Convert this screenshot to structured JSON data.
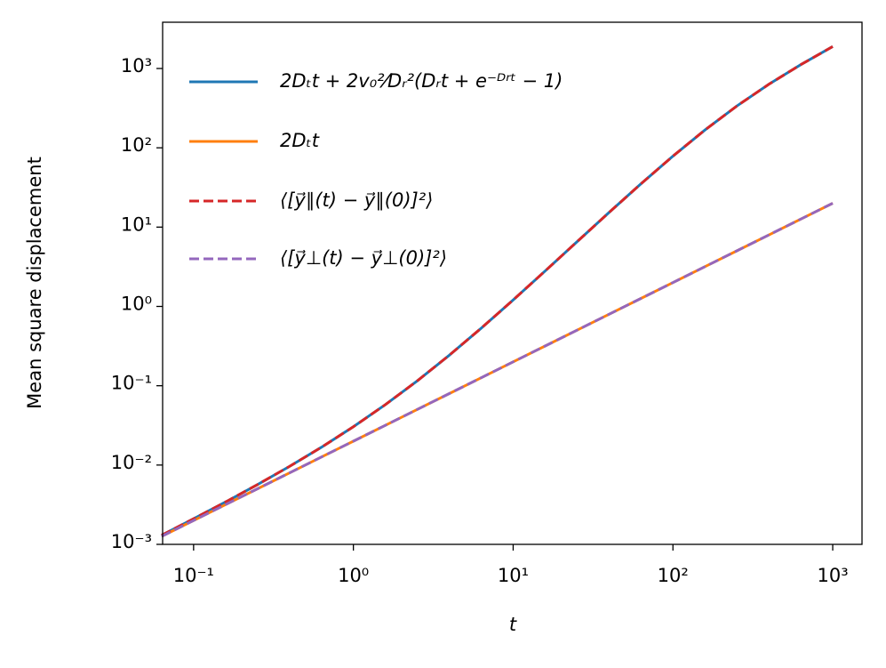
{
  "chart_data": {
    "type": "line",
    "log_x": true,
    "log_y": true,
    "grid": false,
    "x_label": "t",
    "y_label": "Mean square displacement",
    "x": [
      0.0631,
      0.1,
      0.1585,
      0.2512,
      0.3981,
      0.631,
      1,
      1.585,
      2.512,
      3.981,
      6.31,
      10,
      15.85,
      25.12,
      39.81,
      63.1,
      100,
      158.5,
      251.2,
      398.1,
      631,
      1000
    ],
    "series": [
      {
        "name": "2Dₜt + 2v₀²⁄Dᵣ²(Dᵣt + e⁻ᴰʳᵗ − 1)",
        "color": "#1f77b4",
        "dashed": false,
        "values": [
          0.001303,
          0.002104,
          0.00342,
          0.005675,
          0.009607,
          0.01676,
          0.0304,
          0.0577,
          0.1153,
          0.2422,
          0.5317,
          1.206,
          2.796,
          6.549,
          15.29,
          35.18,
          78.5,
          167.5,
          336.4,
          631.9,
          1117.4,
          1892
        ]
      },
      {
        "name": "2Dₜt",
        "color": "#ff7f0e",
        "dashed": false,
        "values": [
          0.001262,
          0.002,
          0.00317,
          0.005024,
          0.00796,
          0.01262,
          0.02,
          0.0317,
          0.05024,
          0.07962,
          0.1262,
          0.2,
          0.317,
          0.5024,
          0.7962,
          1.262,
          2,
          3.17,
          5.024,
          7.962,
          12.62,
          20
        ]
      },
      {
        "name": "⟨[y⃗∥(t) − y⃗∥(0)]²⟩",
        "color": "#d62728",
        "dashed": true,
        "values": [
          0.001303,
          0.002104,
          0.00342,
          0.005675,
          0.009607,
          0.01676,
          0.0304,
          0.0577,
          0.1153,
          0.2422,
          0.5317,
          1.206,
          2.796,
          6.549,
          15.29,
          35.18,
          78.5,
          167.5,
          336.4,
          631.9,
          1117.4,
          1892
        ]
      },
      {
        "name": "⟨[y⃗⊥(t) − y⃗⊥(0)]²⟩",
        "color": "#9467bd",
        "dashed": true,
        "values": [
          0.001262,
          0.002,
          0.00317,
          0.005024,
          0.00796,
          0.01262,
          0.02,
          0.0317,
          0.05024,
          0.07962,
          0.1262,
          0.2,
          0.317,
          0.5024,
          0.7962,
          1.262,
          2,
          3.17,
          5.024,
          7.962,
          12.62,
          20
        ]
      }
    ],
    "xlim": [
      0.064,
      1525
    ],
    "ylim": [
      0.001,
      3830
    ],
    "xticks": [
      {
        "value": 0.1,
        "label": "10⁻¹"
      },
      {
        "value": 1,
        "label": "10⁰"
      },
      {
        "value": 10,
        "label": "10¹"
      },
      {
        "value": 100,
        "label": "10²"
      },
      {
        "value": 1000,
        "label": "10³"
      }
    ],
    "yticks": [
      {
        "value": 0.001,
        "label": "10⁻³"
      },
      {
        "value": 0.01,
        "label": "10⁻²"
      },
      {
        "value": 0.1,
        "label": "10⁻¹"
      },
      {
        "value": 1,
        "label": "10⁰"
      },
      {
        "value": 10,
        "label": "10¹"
      },
      {
        "value": 100,
        "label": "10²"
      },
      {
        "value": 1000,
        "label": "10³"
      }
    ],
    "legend_position": "upper left"
  }
}
